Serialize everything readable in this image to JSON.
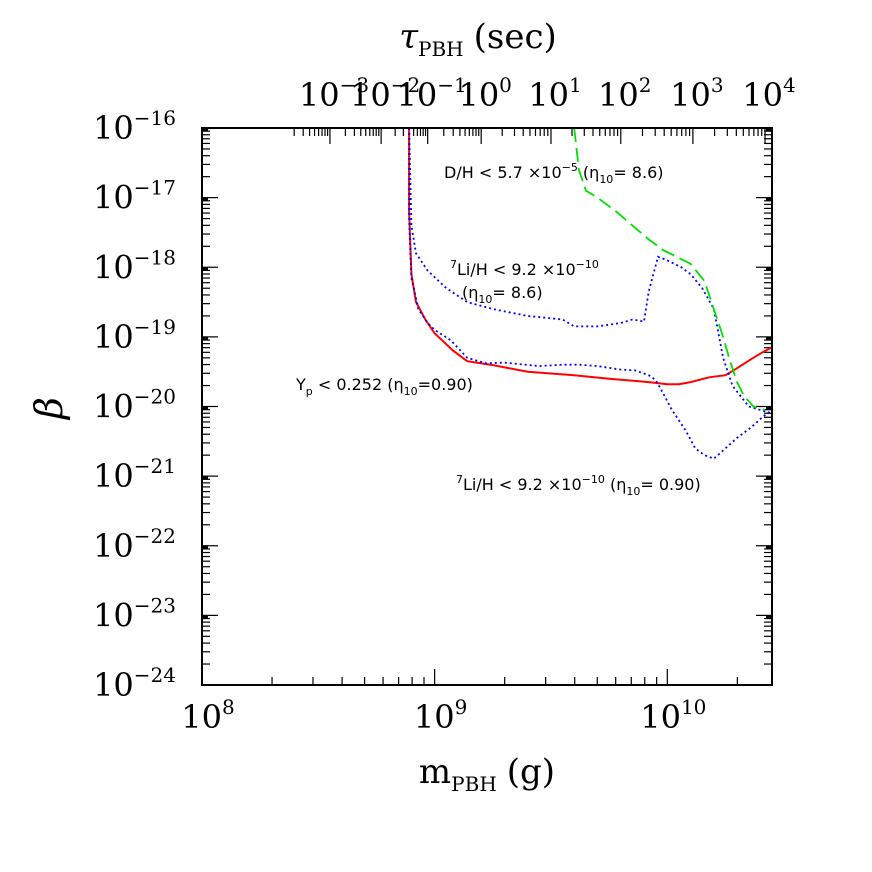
{
  "chart_data": {
    "type": "line",
    "xlabel": "m",
    "xlabel_sub": "PBH",
    "xlabel_unit": "(g)",
    "ylabel": "β",
    "top_label": "τ",
    "top_label_sub": "PBH",
    "top_label_unit": "(sec)",
    "x_scale": "log",
    "y_scale": "log",
    "xlim_log10": [
      8,
      10.45
    ],
    "ylim_log10": [
      -24,
      -16
    ],
    "bottom_ticks": [
      {
        "log10": 8,
        "base": "10",
        "exp": "8"
      },
      {
        "log10": 9,
        "base": "10",
        "exp": "9"
      },
      {
        "log10": 10,
        "base": "10",
        "exp": "10"
      }
    ],
    "left_ticks": [
      {
        "log10": -16,
        "base": "10",
        "exp": "−16"
      },
      {
        "log10": -17,
        "base": "10",
        "exp": "−17"
      },
      {
        "log10": -18,
        "base": "10",
        "exp": "−18"
      },
      {
        "log10": -19,
        "base": "10",
        "exp": "−19"
      },
      {
        "log10": -20,
        "base": "10",
        "exp": "−20"
      },
      {
        "log10": -21,
        "base": "10",
        "exp": "−21"
      },
      {
        "log10": -22,
        "base": "10",
        "exp": "−22"
      },
      {
        "log10": -23,
        "base": "10",
        "exp": "−23"
      },
      {
        "log10": -24,
        "base": "10",
        "exp": "−24"
      }
    ],
    "top_ticks": [
      {
        "mass_log10": 8.55,
        "base": "10",
        "exp": "−3"
      },
      {
        "mass_log10": 8.77,
        "base": "10",
        "exp": "−2"
      },
      {
        "mass_log10": 8.97,
        "base": "10",
        "exp": "−1"
      },
      {
        "mass_log10": 9.2,
        "base": "10",
        "exp": "0"
      },
      {
        "mass_log10": 9.5,
        "base": "10",
        "exp": "1"
      },
      {
        "mass_log10": 9.8,
        "base": "10",
        "exp": "2"
      },
      {
        "mass_log10": 10.11,
        "base": "10",
        "exp": "3"
      },
      {
        "mass_log10": 10.42,
        "base": "10",
        "exp": "4"
      }
    ],
    "series": [
      {
        "name": "Y_p < 0.252 (η10=0.90)",
        "color": "#ff0000",
        "dash": "solid",
        "x": [
          8.89,
          8.89,
          8.9,
          8.92,
          8.96,
          9.0,
          9.08,
          9.14,
          9.24,
          9.4,
          9.6,
          9.75,
          9.92,
          10.0,
          10.05,
          10.1,
          10.18,
          10.25,
          10.3,
          10.36,
          10.41,
          10.45
        ],
        "y": [
          -16.0,
          -17.2,
          -18.1,
          -18.5,
          -18.75,
          -18.95,
          -19.2,
          -19.35,
          -19.4,
          -19.5,
          -19.55,
          -19.6,
          -19.65,
          -19.68,
          -19.68,
          -19.65,
          -19.58,
          -19.55,
          -19.45,
          -19.32,
          -19.22,
          -19.15
        ]
      },
      {
        "name": "7Li/H < 9.2 ×10−10 (η10= 0.90)",
        "color": "#0000ff",
        "dash": "dotted",
        "x": [
          8.89,
          8.89,
          8.9,
          8.93,
          8.97,
          9.0,
          9.07,
          9.14,
          9.22,
          9.3,
          9.45,
          9.55,
          9.62,
          9.7,
          9.8,
          9.86,
          9.92,
          9.95,
          9.98,
          10.02,
          10.08,
          10.12,
          10.16,
          10.2,
          10.25,
          10.3,
          10.36,
          10.41,
          10.45
        ],
        "y": [
          -16.0,
          -17.3,
          -18.15,
          -18.6,
          -18.8,
          -18.9,
          -19.05,
          -19.3,
          -19.38,
          -19.37,
          -19.42,
          -19.4,
          -19.4,
          -19.42,
          -19.47,
          -19.48,
          -19.55,
          -19.62,
          -19.8,
          -20.05,
          -20.35,
          -20.6,
          -20.7,
          -20.75,
          -20.6,
          -20.45,
          -20.3,
          -20.15,
          -20.05
        ]
      },
      {
        "name": "7Li/H < 9.2 ×10−10 (η10= 8.6)",
        "color": "#0000ff",
        "dash": "dotted",
        "x": [
          8.89,
          8.9,
          8.92,
          8.97,
          9.05,
          9.14,
          9.25,
          9.4,
          9.55,
          9.6,
          9.7,
          9.8,
          9.85,
          9.9,
          9.92,
          9.96,
          10.0,
          10.06,
          10.1,
          10.15,
          10.2,
          10.22,
          10.24,
          10.28,
          10.35,
          10.45
        ],
        "y": [
          -16.0,
          -17.4,
          -17.8,
          -18.05,
          -18.3,
          -18.5,
          -18.6,
          -18.7,
          -18.75,
          -18.85,
          -18.85,
          -18.8,
          -18.75,
          -18.78,
          -18.35,
          -17.85,
          -17.9,
          -18.0,
          -18.1,
          -18.3,
          -18.6,
          -18.95,
          -19.3,
          -19.7,
          -20.0,
          -20.1
        ]
      },
      {
        "name": "D/H < 5.7 ×10−5 (η10= 8.6)",
        "color": "#00e000",
        "dash": "dashed",
        "x": [
          9.6,
          9.62,
          9.65,
          9.7,
          9.78,
          9.85,
          9.92,
          9.98,
          10.04,
          10.1,
          10.16,
          10.2,
          10.24,
          10.27,
          10.3,
          10.33,
          10.37,
          10.42
        ],
        "y": [
          -16.0,
          -16.6,
          -16.9,
          -17.0,
          -17.2,
          -17.4,
          -17.6,
          -17.75,
          -17.85,
          -17.95,
          -18.2,
          -18.6,
          -19.0,
          -19.35,
          -19.65,
          -19.85,
          -20.0,
          -20.05
        ]
      }
    ],
    "annotations": [
      {
        "id": "dh",
        "text": "D/H < 5.7 ×10",
        "sup": "−5",
        "tail": " (η",
        "sub": "10",
        "end": "= 8.6)"
      },
      {
        "id": "li_high_1",
        "pre_sup": "7",
        "text": "Li/H < 9.2 ×10",
        "sup": "−10"
      },
      {
        "id": "li_high_2",
        "text": "(η",
        "sub": "10",
        "end": "= 8.6)"
      },
      {
        "id": "yp",
        "text": "Y",
        "sub": "p",
        "tail": " < 0.252 (η",
        "sub2": "10",
        "end": "=0.90)"
      },
      {
        "id": "li_low",
        "pre_sup": "7",
        "text": "Li/H < 9.2 ×10",
        "sup": "−10",
        "tail": " (η",
        "sub": "10",
        "end": "= 0.90)"
      }
    ]
  }
}
